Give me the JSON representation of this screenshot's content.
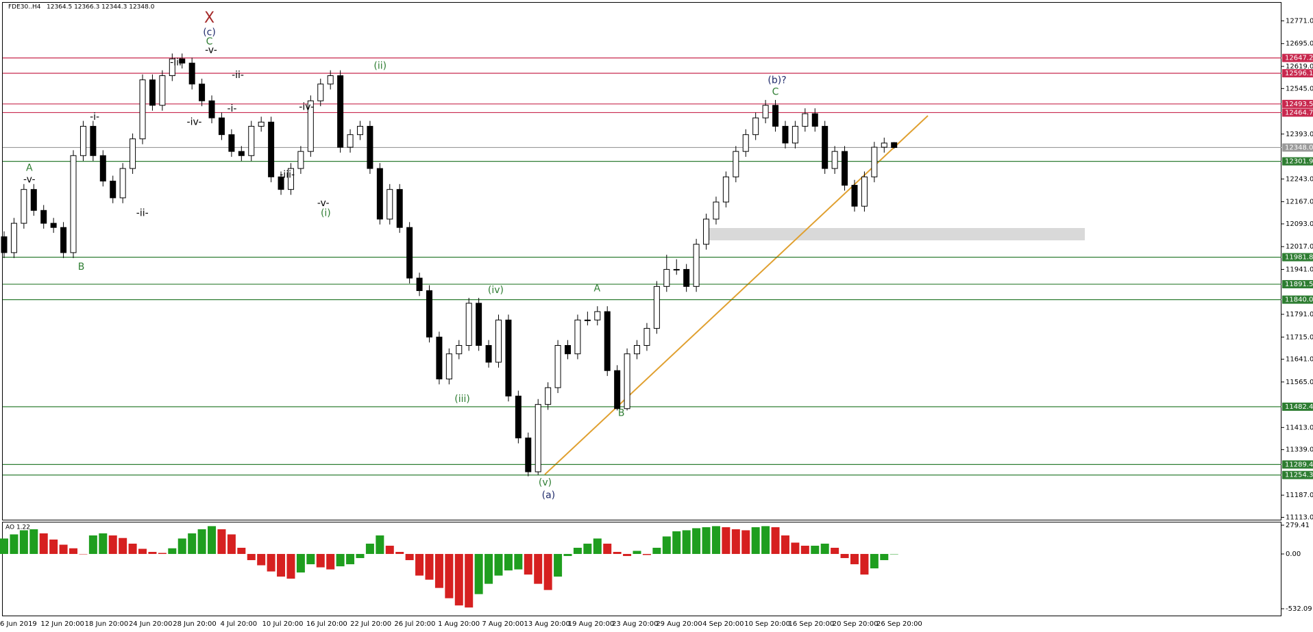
{
  "chart_data": [
    {
      "type": "candlestick",
      "symbol": "FDE30..H4",
      "ohlc_text": "12364.5 12366.3 12344.3 12348.0",
      "date_labels": [
        "6 Jun 2019",
        "12 Jun 20:00",
        "18 Jun 20:00",
        "24 Jun 20:00",
        "28 Jun 20:00",
        "4 Jul 20:00",
        "10 Jul 20:00",
        "16 Jul 20:00",
        "22 Jul 20:00",
        "26 Jul 20:00",
        "1 Aug 20:00",
        "7 Aug 20:00",
        "13 Aug 20:00",
        "19 Aug 20:00",
        "23 Aug 20:00",
        "29 Aug 20:00",
        "4 Sep 20:00",
        "10 Sep 20:00",
        "16 Sep 20:00",
        "20 Sep 20:00",
        "26 Sep 20:00"
      ],
      "open": [
        12050,
        11997,
        12095,
        12208,
        12138,
        12095,
        12081,
        11997,
        12321,
        12419,
        12321,
        12236,
        12180,
        12278,
        12377,
        12574,
        12489,
        12588,
        12644,
        12630,
        12560,
        12504,
        12447,
        12391,
        12335,
        12321,
        12419,
        12433,
        12250,
        12208,
        12278,
        12335,
        12504,
        12560,
        12588,
        12349,
        12391,
        12419,
        12278,
        12109,
        12208,
        12081,
        11912,
        11870,
        11715,
        11575,
        11659,
        11687,
        11828,
        11687,
        11631,
        11772,
        11518,
        11378,
        11265,
        11490,
        11546,
        11687,
        11659,
        11772,
        11772,
        11800,
        11603,
        11476,
        11659,
        11687,
        11744,
        11884,
        11941,
        11941,
        11884,
        12025,
        12109,
        12166,
        12250,
        12335,
        12391,
        12447,
        12489,
        12419,
        12363,
        12419,
        12461,
        12419,
        12278,
        12335,
        12222,
        12152,
        12250,
        12349,
        12364.5
      ],
      "high": [
        12068,
        12113,
        12226,
        12226,
        12156,
        12113,
        12099,
        12339,
        12437,
        12437,
        12339,
        12254,
        12296,
        12395,
        12592,
        12592,
        12606,
        12662,
        12662,
        12648,
        12578,
        12522,
        12465,
        12409,
        12353,
        12437,
        12451,
        12451,
        12268,
        12296,
        12353,
        12522,
        12578,
        12606,
        12606,
        12409,
        12437,
        12437,
        12296,
        12226,
        12226,
        12099,
        11930,
        11888,
        11733,
        11677,
        11705,
        11846,
        11846,
        11705,
        11790,
        11790,
        11536,
        11396,
        11508,
        11564,
        11705,
        11705,
        11790,
        11800,
        11818,
        11818,
        11621,
        11677,
        11705,
        11762,
        11902,
        11990,
        11975,
        11959,
        12043,
        12127,
        12184,
        12268,
        12353,
        12409,
        12465,
        12507,
        12507,
        12437,
        12437,
        12479,
        12479,
        12437,
        12353,
        12353,
        12240,
        12268,
        12367,
        12381,
        12366.3
      ],
      "low": [
        11979,
        11979,
        12077,
        12120,
        12077,
        12063,
        11979,
        11979,
        12303,
        12303,
        12218,
        12162,
        12162,
        12260,
        12359,
        12471,
        12471,
        12570,
        12612,
        12542,
        12486,
        12429,
        12373,
        12317,
        12303,
        12303,
        12401,
        12232,
        12190,
        12190,
        12260,
        12317,
        12486,
        12542,
        12331,
        12331,
        12373,
        12260,
        12091,
        12091,
        12063,
        11894,
        11852,
        11697,
        11557,
        11557,
        11641,
        11669,
        11669,
        11613,
        11613,
        11500,
        11360,
        11250,
        11255,
        11472,
        11528,
        11641,
        11641,
        11754,
        11754,
        11585,
        11470,
        11470,
        11641,
        11669,
        11726,
        11866,
        11923,
        11866,
        11866,
        12007,
        12091,
        12148,
        12232,
        12317,
        12373,
        12429,
        12401,
        12345,
        12345,
        12401,
        12401,
        12260,
        12260,
        12204,
        12134,
        12134,
        12232,
        12331,
        12344.3
      ],
      "close": [
        11997,
        12095,
        12208,
        12138,
        12095,
        12081,
        11997,
        12321,
        12419,
        12321,
        12236,
        12180,
        12278,
        12377,
        12574,
        12489,
        12588,
        12644,
        12630,
        12560,
        12504,
        12447,
        12391,
        12335,
        12321,
        12419,
        12433,
        12250,
        12208,
        12278,
        12335,
        12504,
        12560,
        12588,
        12349,
        12391,
        12419,
        12278,
        12109,
        12208,
        12081,
        11912,
        11870,
        11715,
        11575,
        11659,
        11687,
        11828,
        11687,
        11631,
        11772,
        11518,
        11378,
        11265,
        11490,
        11546,
        11687,
        11659,
        11772,
        11772,
        11800,
        11603,
        11476,
        11659,
        11687,
        11744,
        11884,
        11941,
        11941,
        11884,
        12025,
        12109,
        12166,
        12250,
        12335,
        12391,
        12447,
        12489,
        12419,
        12363,
        12419,
        12461,
        12419,
        12278,
        12335,
        12222,
        12152,
        12250,
        12349,
        12363,
        12348.0
      ],
      "up_color": "#ffffff",
      "down_color": "#000000",
      "ylim": [
        11105,
        12827
      ],
      "yticks": [
        {
          "value": 12771,
          "label": "12771.0"
        },
        {
          "value": 12695,
          "label": "12695.0"
        },
        {
          "value": 12619,
          "label": "12619.0"
        },
        {
          "value": 12545,
          "label": "12545.0"
        },
        {
          "value": 12393,
          "label": "12393.0"
        },
        {
          "value": 12243,
          "label": "12243.0"
        },
        {
          "value": 12167,
          "label": "12167.0"
        },
        {
          "value": 12093,
          "label": "12093.0"
        },
        {
          "value": 12017,
          "label": "12017.0"
        },
        {
          "value": 11941,
          "label": "11941.0"
        },
        {
          "value": 11791,
          "label": "11791.0"
        },
        {
          "value": 11715,
          "label": "11715.0"
        },
        {
          "value": 11641,
          "label": "11641.0"
        },
        {
          "value": 11565,
          "label": "11565.0"
        },
        {
          "value": 11413,
          "label": "11413.0"
        },
        {
          "value": 11339,
          "label": "11339.0"
        },
        {
          "value": 11187,
          "label": "11187.0"
        },
        {
          "value": 11113,
          "label": "11113.0"
        }
      ],
      "levels": [
        {
          "value": 12647.2,
          "label": "12647.2",
          "color": "#c8284e"
        },
        {
          "value": 12596.1,
          "label": "12596.1",
          "color": "#c8284e"
        },
        {
          "value": 12493.5,
          "label": "12493.5",
          "color": "#c8284e"
        },
        {
          "value": 12464.7,
          "label": "12464.7",
          "color": "#c8284e"
        },
        {
          "value": 12348.0,
          "label": "12348.0",
          "color": "#9a9a9a"
        },
        {
          "value": 12301.9,
          "label": "12301.9",
          "color": "#2e7d32"
        },
        {
          "value": 11981.8,
          "label": "11981.8",
          "color": "#2e7d32"
        },
        {
          "value": 11891.5,
          "label": "11891.5",
          "color": "#2e7d32"
        },
        {
          "value": 11840.0,
          "label": "11840.0",
          "color": "#2e7d32"
        },
        {
          "value": 11482.4,
          "label": "11482.4",
          "color": "#2e7d32"
        },
        {
          "value": 11289.4,
          "label": "11289.4",
          "color": "#2e7d32"
        },
        {
          "value": 11254.3,
          "label": "11254.3",
          "color": "#2e7d32"
        }
      ],
      "annotations": [
        {
          "text": "X",
          "color": "#a52a2a"
        },
        {
          "text": "(c)",
          "color": "#1f2a6b"
        },
        {
          "text": "C",
          "color": "#2e7d32"
        },
        {
          "text": "-v-",
          "color": "#000000"
        },
        {
          "text": "-iii-",
          "color": "#000000"
        },
        {
          "text": "-ii-",
          "color": "#000000"
        },
        {
          "text": "-i-",
          "color": "#000000"
        },
        {
          "text": "-iv-",
          "color": "#000000"
        },
        {
          "text": "-i-",
          "color": "#000000"
        },
        {
          "text": "A",
          "color": "#2e7d32"
        },
        {
          "text": "-v-",
          "color": "#000000"
        },
        {
          "text": "-ii-",
          "color": "#000000"
        },
        {
          "text": "B",
          "color": "#2e7d32"
        },
        {
          "text": "-iv-",
          "color": "#000000"
        },
        {
          "text": "-iii-",
          "color": "#000000"
        },
        {
          "text": "-v-",
          "color": "#000000"
        },
        {
          "text": "(i)",
          "color": "#2e7d32"
        },
        {
          "text": "(ii)",
          "color": "#2e7d32"
        },
        {
          "text": "(iii)",
          "color": "#2e7d32"
        },
        {
          "text": "(iv)",
          "color": "#2e7d32"
        },
        {
          "text": "(v)",
          "color": "#2e7d32"
        },
        {
          "text": "(a)",
          "color": "#1f2a6b"
        },
        {
          "text": "A",
          "color": "#2e7d32"
        },
        {
          "text": "B",
          "color": "#2e7d32"
        },
        {
          "text": "(b)?",
          "color": "#1f2a6b"
        },
        {
          "text": "C",
          "color": "#2e7d32"
        }
      ]
    },
    {
      "type": "bar",
      "title": "AO 1.22",
      "values": [
        150,
        190,
        230,
        240,
        200,
        140,
        90,
        55,
        0,
        180,
        200,
        180,
        155,
        100,
        50,
        20,
        10,
        55,
        150,
        200,
        240,
        270,
        240,
        190,
        60,
        -60,
        -110,
        -170,
        -220,
        -240,
        -180,
        -100,
        -130,
        -150,
        -120,
        -100,
        -40,
        100,
        180,
        80,
        20,
        -60,
        -210,
        -250,
        -330,
        -430,
        -500,
        -520,
        -390,
        -290,
        -210,
        -160,
        -150,
        -200,
        -290,
        -350,
        -220,
        -20,
        60,
        100,
        150,
        100,
        20,
        -20,
        30,
        -10,
        60,
        170,
        220,
        230,
        250,
        260,
        270,
        260,
        240,
        230,
        260,
        270,
        260,
        180,
        110,
        80,
        80,
        100,
        60,
        -40,
        -100,
        -200,
        -140,
        -60,
        0
      ],
      "up_color": "#1f9e1f",
      "down_color": "#d62020",
      "ylim": [
        -605,
        306
      ],
      "yticks": [
        {
          "value": 279.41,
          "label": "279.41"
        },
        {
          "value": 0,
          "label": "0.00"
        },
        {
          "value": -532.09,
          "label": "-532.09"
        }
      ]
    }
  ]
}
